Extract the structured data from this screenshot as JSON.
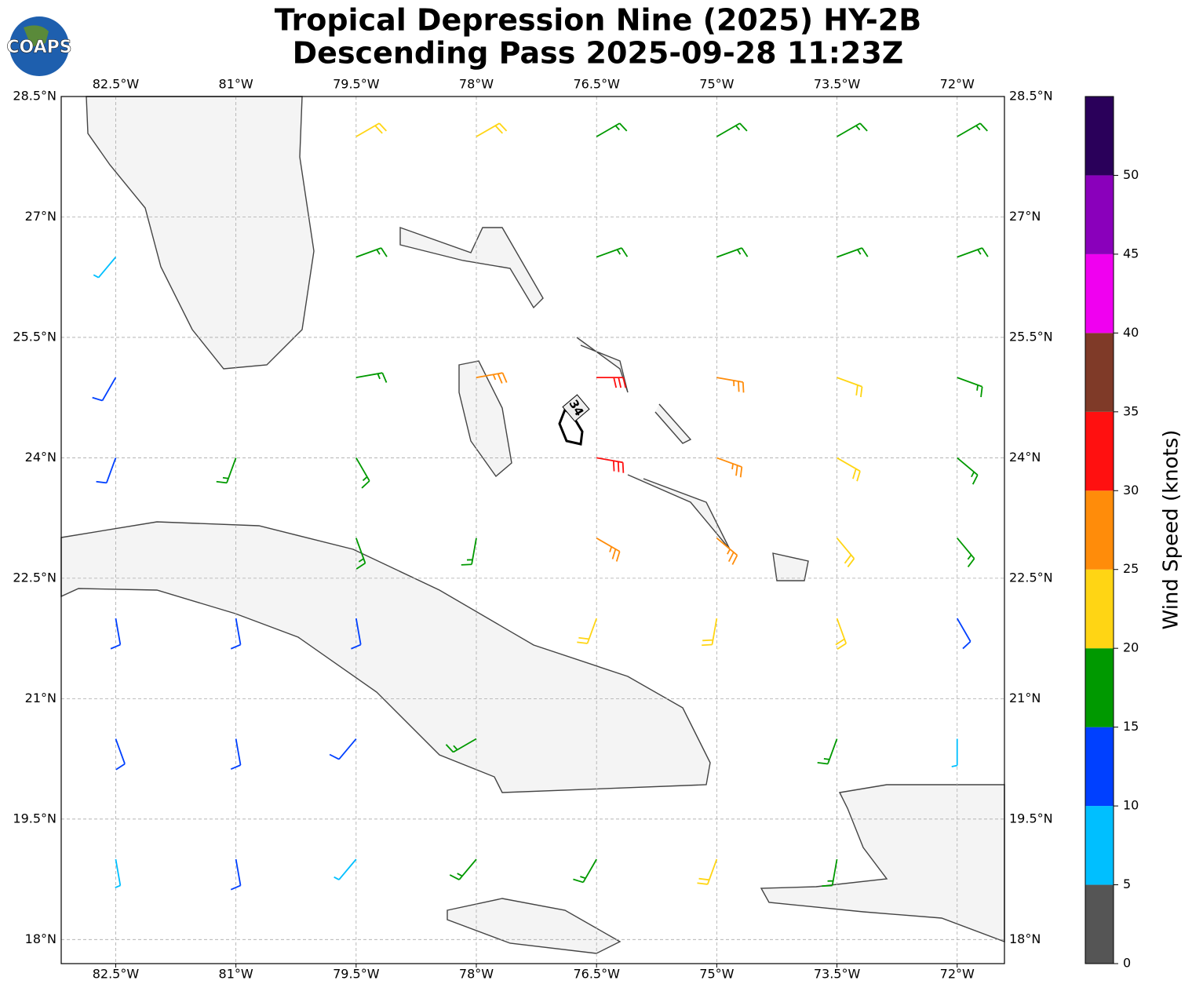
{
  "logo": {
    "text": "COAPS"
  },
  "chart_data": {
    "type": "wind-barb-map",
    "title": "Tropical Depression Nine (2025) HY-2B",
    "subtitle": "Descending Pass 2025-09-28 11:23Z",
    "xlim": [
      -83.18,
      -71.41
    ],
    "ylim": [
      17.7,
      28.5
    ],
    "xticks": [
      {
        "value": -82.5,
        "label": "82.5°W"
      },
      {
        "value": -81,
        "label": "81°W"
      },
      {
        "value": -79.5,
        "label": "79.5°W"
      },
      {
        "value": -78,
        "label": "78°W"
      },
      {
        "value": -76.5,
        "label": "76.5°W"
      },
      {
        "value": -75,
        "label": "75°W"
      },
      {
        "value": -73.5,
        "label": "73.5°W"
      },
      {
        "value": -72,
        "label": "72°W"
      }
    ],
    "yticks": [
      {
        "value": 28.5,
        "label": "28.5°N"
      },
      {
        "value": 27,
        "label": "27°N"
      },
      {
        "value": 25.5,
        "label": "25.5°N"
      },
      {
        "value": 24,
        "label": "24°N"
      },
      {
        "value": 22.5,
        "label": "22.5°N"
      },
      {
        "value": 21,
        "label": "21°N"
      },
      {
        "value": 19.5,
        "label": "19.5°N"
      },
      {
        "value": 18,
        "label": "18°N"
      }
    ],
    "grid": true,
    "wind": {
      "lons": [
        -82.5,
        -81,
        -79.5,
        -78,
        -76.5,
        -75,
        -73.5,
        -72
      ],
      "lats": [
        28,
        26.5,
        25,
        24,
        23,
        22,
        20.5,
        19
      ],
      "speeds": [
        [
          null,
          null,
          20,
          20,
          15,
          15,
          15,
          15
        ],
        [
          8,
          null,
          15,
          null,
          18,
          18,
          18,
          15
        ],
        [
          12,
          null,
          18,
          28,
          30,
          25,
          20,
          18
        ],
        [
          12,
          16,
          18,
          null,
          33,
          25,
          22,
          18
        ],
        [
          null,
          null,
          17,
          18,
          25,
          25,
          22,
          18
        ],
        [
          13,
          12,
          13,
          null,
          20,
          22,
          20,
          12
        ],
        [
          10,
          12,
          10,
          16,
          null,
          null,
          15,
          8
        ],
        [
          8,
          10,
          8,
          18,
          18,
          20,
          15,
          null
        ]
      ],
      "directions": [
        [
          null,
          null,
          60,
          60,
          60,
          60,
          60,
          60
        ],
        [
          220,
          null,
          70,
          null,
          70,
          70,
          70,
          70
        ],
        [
          210,
          null,
          80,
          80,
          90,
          100,
          110,
          110
        ],
        [
          200,
          200,
          150,
          null,
          100,
          110,
          120,
          130
        ],
        [
          null,
          null,
          160,
          190,
          120,
          130,
          140,
          140
        ],
        [
          170,
          170,
          170,
          null,
          200,
          190,
          160,
          150
        ],
        [
          160,
          170,
          220,
          240,
          null,
          null,
          200,
          180
        ],
        [
          170,
          170,
          220,
          220,
          210,
          200,
          190,
          null
        ]
      ]
    },
    "contour_label": "34",
    "colorbar": {
      "label": "Wind Speed (knots)",
      "bounds": [
        0,
        5,
        10,
        15,
        20,
        25,
        30,
        35,
        40,
        45,
        50,
        55
      ],
      "colors": [
        "#555555",
        "#00bfff",
        "#0040ff",
        "#009900",
        "#ffd514",
        "#ff8c0a",
        "#ff1010",
        "#7f3a28",
        "#f000f0",
        "#8a00bb",
        "#2a005a"
      ],
      "ticks": [
        0,
        5,
        10,
        15,
        20,
        25,
        30,
        35,
        40,
        45,
        50
      ]
    }
  }
}
